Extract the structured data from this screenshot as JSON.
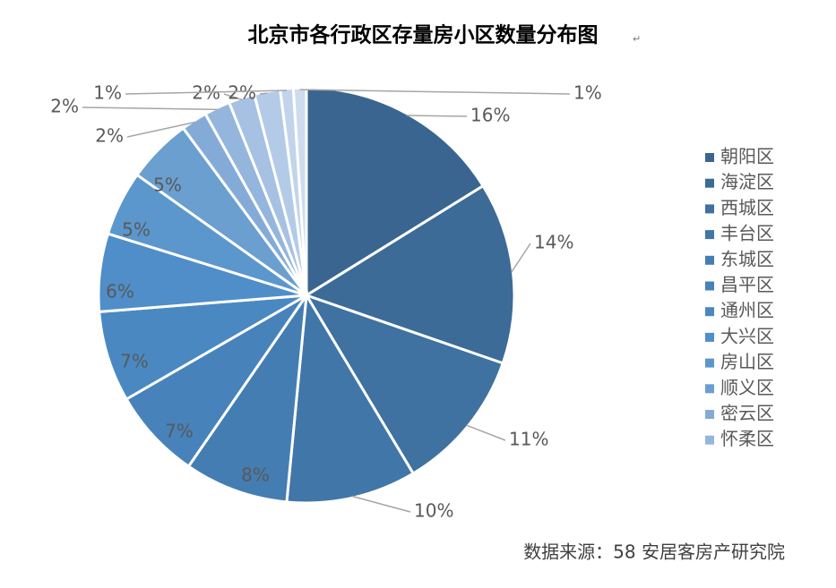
{
  "chart_data": {
    "type": "pie",
    "title": "北京市各行政区存量房小区数量分布图",
    "title_mark": "↵",
    "source": "数据来源：58 安居客房产研究院",
    "categories": [
      "朝阳区",
      "海淀区",
      "西城区",
      "丰台区",
      "东城区",
      "昌平区",
      "通州区",
      "大兴区",
      "房山区",
      "顺义区",
      "密云区",
      "怀柔区",
      null,
      null,
      null,
      null
    ],
    "values": [
      16,
      14,
      11,
      10,
      8,
      7,
      7,
      6,
      5,
      5,
      2,
      2,
      2,
      2,
      1,
      1
    ],
    "value_labels": [
      "16%",
      "14%",
      "11%",
      "10%",
      "8%",
      "7%",
      "7%",
      "6%",
      "5%",
      "5%",
      "2%",
      "2%",
      "2%",
      "2%",
      "1%",
      "1%"
    ],
    "colors": [
      "#3a6590",
      "#3c6b98",
      "#3f71a1",
      "#4176a9",
      "#447db2",
      "#4782bb",
      "#4a88c2",
      "#4f8ec8",
      "#5b97cc",
      "#6a9fd0",
      "#84abd8",
      "#94b6dd",
      "#a6c1e2",
      "#b4cbe7",
      "#c2d4eb",
      "#cfdcef"
    ],
    "legend": "right"
  }
}
